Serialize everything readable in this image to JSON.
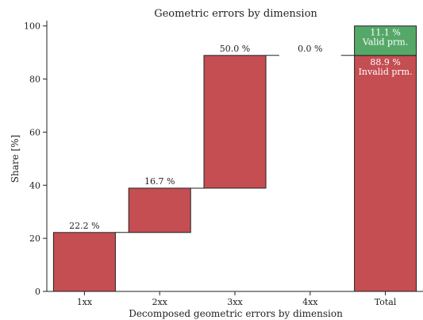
{
  "chart_data": {
    "type": "bar",
    "title": "Geometric errors by dimension",
    "xlabel": "Decomposed geometric errors by dimension",
    "ylabel": "Share [%]",
    "ylim": [
      0,
      102
    ],
    "yticks": [
      0,
      20,
      40,
      60,
      80,
      100
    ],
    "grid": false,
    "categories": [
      "1xx",
      "2xx",
      "3xx",
      "4xx",
      "Total"
    ],
    "bars": [
      {
        "category": "1xx",
        "bottom": 0.0,
        "value": 22.2,
        "label": "22.2 %",
        "color": "#c44e52"
      },
      {
        "category": "2xx",
        "bottom": 22.2,
        "value": 16.7,
        "label": "16.7 %",
        "color": "#c44e52"
      },
      {
        "category": "3xx",
        "bottom": 38.9,
        "value": 50.0,
        "label": "50.0 %",
        "color": "#c44e52"
      },
      {
        "category": "4xx",
        "bottom": 88.9,
        "value": 0.0,
        "label": "0.0 %",
        "color": "#c44e52"
      },
      {
        "category": "Total",
        "bottom": 0.0,
        "value": 88.9,
        "label": "88.9 %",
        "sublabel": "Invalid prm.",
        "color": "#c44e52"
      },
      {
        "category": "Total",
        "bottom": 88.9,
        "value": 11.1,
        "label": "11.1 %",
        "sublabel": "Valid prm.",
        "color": "#55a868"
      }
    ]
  }
}
